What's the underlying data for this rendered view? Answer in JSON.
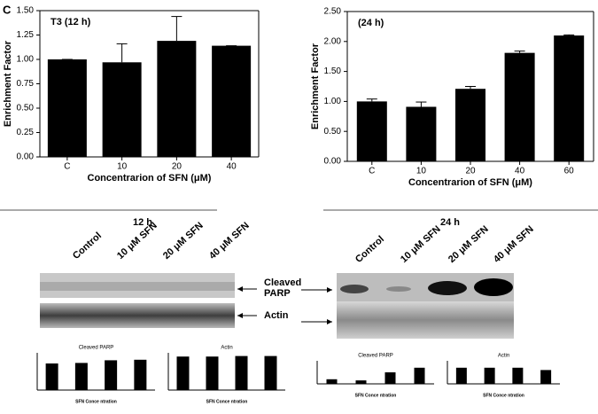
{
  "chart_data": [
    {
      "type": "bar",
      "panel_label": "C",
      "title": "T3 (12 h)",
      "xlabel": "Concentrarion of SFN (μM)",
      "ylabel": "Enrichment Factor",
      "color": "#000000",
      "categories": [
        "C",
        "10",
        "20",
        "40"
      ],
      "values": [
        1.0,
        0.97,
        1.19,
        1.14
      ],
      "errors": [
        0,
        0.19,
        0.25,
        0
      ],
      "ylim": [
        0,
        1.5
      ],
      "yticks": [
        {
          "value": 0,
          "label": "0.00"
        },
        {
          "value": 0.25,
          "label": "0.25"
        },
        {
          "value": 0.5,
          "label": "0.50"
        },
        {
          "value": 0.75,
          "label": "0.75"
        },
        {
          "value": 1.0,
          "label": "1.00"
        },
        {
          "value": 1.25,
          "label": "1.25"
        },
        {
          "value": 1.5,
          "label": "1.50"
        }
      ]
    },
    {
      "type": "bar",
      "title": "(24 h)",
      "xlabel": "Concentrarion of SFN (μM)",
      "ylabel": "Enrichment Factor",
      "color": "#000000",
      "categories": [
        "C",
        "10",
        "20",
        "40",
        "60"
      ],
      "values": [
        1.0,
        0.91,
        1.21,
        1.81,
        2.1
      ],
      "errors": [
        0.04,
        0.08,
        0.04,
        0.03,
        0.01
      ],
      "ylim": [
        0,
        2.5
      ],
      "yticks": [
        {
          "value": 0,
          "label": "0.00"
        },
        {
          "value": 0.5,
          "label": "0.50"
        },
        {
          "value": 1.0,
          "label": "1.00"
        },
        {
          "value": 1.5,
          "label": "1.50"
        },
        {
          "value": 2.0,
          "label": "2.00"
        },
        {
          "value": 2.5,
          "label": "2.50"
        }
      ]
    },
    {
      "type": "bar",
      "title": "Cleaved PARP",
      "xlabel": "SFN Conce ntration",
      "color": "#000000",
      "categories": [
        null,
        null,
        null,
        null
      ],
      "values": [
        5000,
        5100,
        5600,
        5700
      ],
      "ylim": [
        0,
        7000
      ]
    },
    {
      "type": "bar",
      "title": "Actin",
      "xlabel": "SFN Conce ntration",
      "color": "#000000",
      "categories": [
        null,
        null,
        null,
        null
      ],
      "values": [
        6300,
        6300,
        6400,
        6400
      ],
      "ylim": [
        0,
        7000
      ]
    },
    {
      "type": "bar",
      "title": "Cleaved PARP",
      "xlabel": "SFN Conce ntration",
      "color": "#000000",
      "categories": [
        null,
        null,
        null,
        null
      ],
      "values": [
        20,
        15,
        50,
        70
      ],
      "ylim": [
        0,
        100
      ]
    },
    {
      "type": "bar",
      "title": "Actin",
      "xlabel": "SFN Conce ntration",
      "color": "#000000",
      "categories": [
        null,
        null,
        null,
        null
      ],
      "values": [
        70,
        70,
        70,
        60
      ],
      "ylim": [
        0,
        100
      ]
    }
  ],
  "blots": [
    {
      "title": "12 h",
      "lanes": [
        "Control",
        "10 μM SFN",
        "20 μM SFN",
        "40 μM SFN"
      ],
      "bands": [
        "Cleaved PARP",
        "Actin"
      ]
    },
    {
      "title": "24 h",
      "lanes": [
        "Control",
        "10 μM SFN",
        "20 μM SFN",
        "40 μM SFN"
      ],
      "bands": [
        "Cleaved PARP",
        "Actin"
      ]
    }
  ]
}
